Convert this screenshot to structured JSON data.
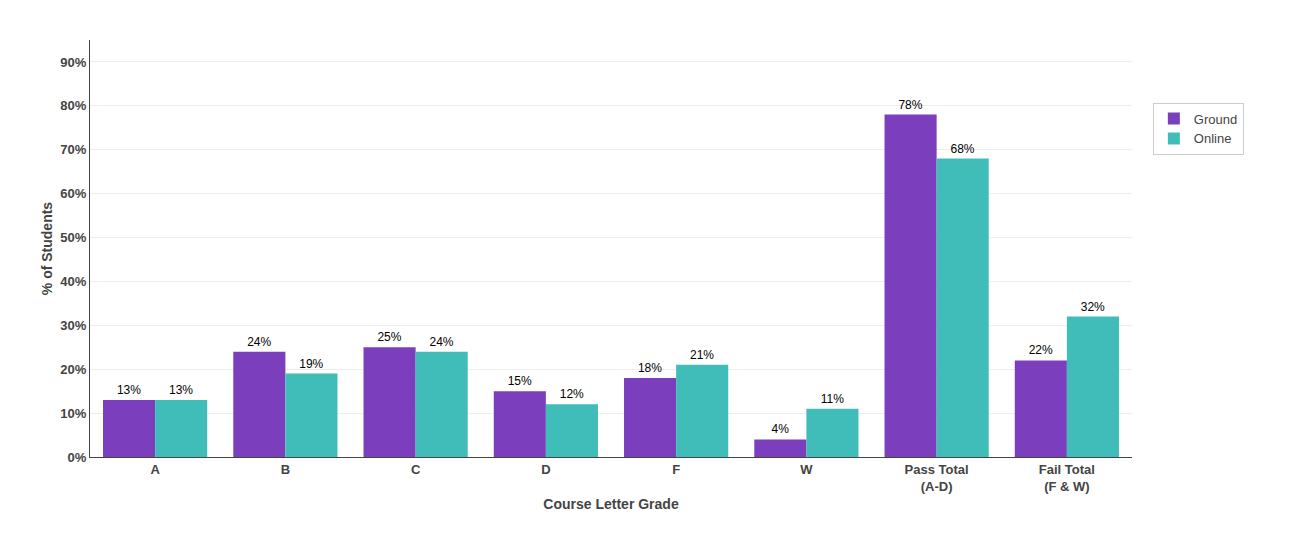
{
  "chart_data": {
    "type": "bar",
    "categories": [
      "A",
      "B",
      "C",
      "D",
      "F",
      "W",
      "Pass Total\n(A-D)",
      "Fail Total\n(F & W)"
    ],
    "series": [
      {
        "name": "Ground",
        "color": "#7B3FBE",
        "values": [
          13,
          24,
          25,
          15,
          18,
          4,
          78,
          22
        ],
        "value_labels": [
          "13%",
          "24%",
          "25%",
          "15%",
          "18%",
          "4%",
          "78%",
          "22%"
        ]
      },
      {
        "name": "Online",
        "color": "#40BDB8",
        "values": [
          13,
          19,
          24,
          12,
          21,
          11,
          68,
          32
        ],
        "value_labels": [
          "13%",
          "19%",
          "24%",
          "12%",
          "21%",
          "11%",
          "68%",
          "32%"
        ]
      }
    ],
    "xlabel": "Course Letter Grade",
    "ylabel": "% of Students",
    "ylim": [
      0,
      95
    ],
    "yticks": [
      {
        "value": 0,
        "label": "0%"
      },
      {
        "value": 10,
        "label": "10%"
      },
      {
        "value": 20,
        "label": "20%"
      },
      {
        "value": 30,
        "label": "30%"
      },
      {
        "value": 40,
        "label": "40%"
      },
      {
        "value": 50,
        "label": "50%"
      },
      {
        "value": 60,
        "label": "60%"
      },
      {
        "value": 70,
        "label": "70%"
      },
      {
        "value": 80,
        "label": "80%"
      },
      {
        "value": 90,
        "label": "90%"
      }
    ],
    "grid": true,
    "legend": "right",
    "data_labels": true
  }
}
